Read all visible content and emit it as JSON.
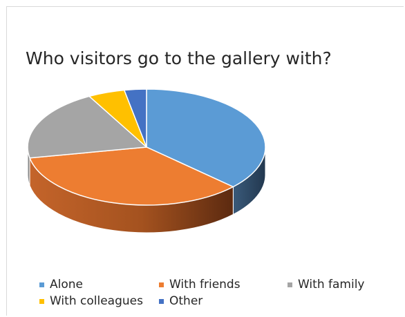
{
  "chart_data": {
    "type": "pie",
    "title": "Who visitors go to the gallery with?",
    "categories": [
      "Alone",
      "With friends",
      "With family",
      "With colleagues",
      "Other"
    ],
    "values": [
      37,
      35,
      20,
      5,
      3
    ],
    "unit": "%",
    "colors": [
      "#5b9bd5",
      "#ed7d31",
      "#a5a5a5",
      "#ffc000",
      "#4472c4"
    ],
    "style": "3d-pie",
    "legend_position": "bottom"
  }
}
